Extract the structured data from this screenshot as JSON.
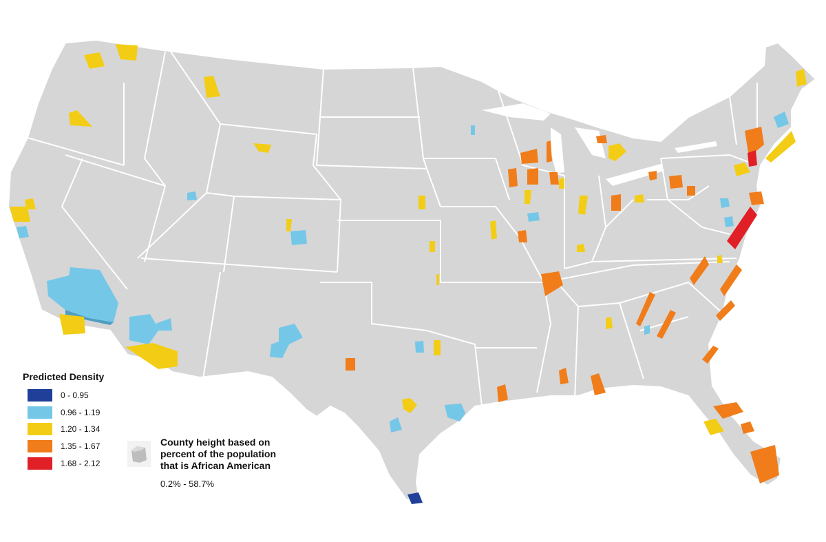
{
  "legend": {
    "title": "Predicted Density",
    "items": [
      {
        "label": "0 - 0.95",
        "color": "#1f3f99"
      },
      {
        "label": "0.96 - 1.19",
        "color": "#75c7e8"
      },
      {
        "label": "1.20 - 1.34",
        "color": "#f3cd15"
      },
      {
        "label": "1.35 - 1.67",
        "color": "#f07c1a"
      },
      {
        "label": "1.68 - 2.12",
        "color": "#e01f26"
      }
    ]
  },
  "height_legend": {
    "line1": "County height based on",
    "line2": "percent of the population",
    "line3": "that is African American",
    "range": "0.2%  -  58.7%"
  },
  "colors": {
    "land": "#d6d6d6",
    "border": "#ffffff",
    "extrusion_side": "darker shade of class color"
  }
}
